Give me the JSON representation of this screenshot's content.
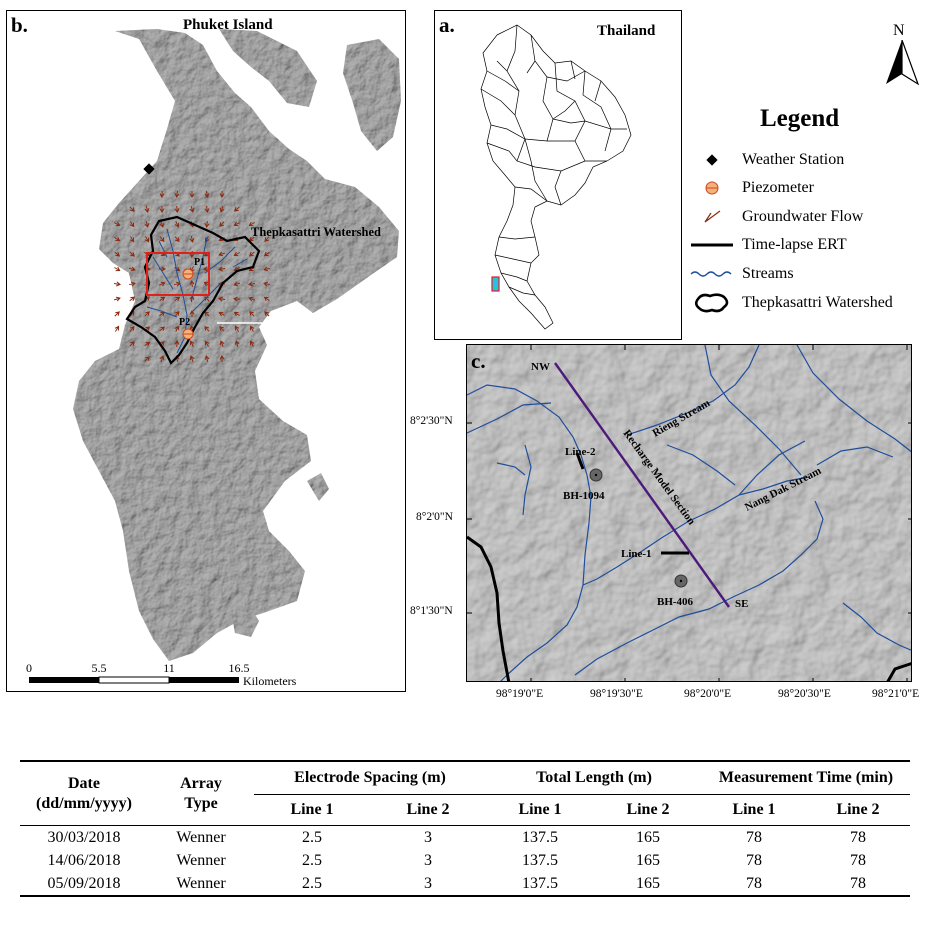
{
  "panel_b": {
    "letter": "b.",
    "title": "Phuket Island",
    "watershed_label": "Thepkasattri Watershed",
    "piezometer_labels": [
      "P1",
      "P2"
    ],
    "scale_ticks": [
      "0",
      "5.5",
      "11",
      "16.5"
    ],
    "scale_unit": "Kilometers"
  },
  "panel_a": {
    "letter": "a.",
    "title": "Thailand"
  },
  "north_arrow": {
    "label": "N"
  },
  "legend": {
    "title": "Legend",
    "items": [
      {
        "label": "Weather Station",
        "symbol": "diamond-icon"
      },
      {
        "label": "Piezometer",
        "symbol": "piezometer-icon"
      },
      {
        "label": "Groundwater Flow",
        "symbol": "flow-arrow-icon"
      },
      {
        "label": "Time-lapse ERT",
        "symbol": "thick-line-icon"
      },
      {
        "label": "Streams",
        "symbol": "wavy-line-icon"
      },
      {
        "label": "Thepkasattri Watershed",
        "symbol": "watershed-outline-icon"
      }
    ]
  },
  "panel_c": {
    "letter": "c.",
    "labels": {
      "nw": "NW",
      "se": "SE",
      "rieng": "Rieng Stream",
      "nangdak": "Nang Dak Stream",
      "section": "Recharge Model Section",
      "line1": "Line-1",
      "line2": "Line-2",
      "bh1094": "BH-1094",
      "bh406": "BH-406"
    },
    "lat_labels": [
      "8°2'30\"N",
      "8°2'0\"N",
      "8°1'30\"N"
    ],
    "lon_labels": [
      "98°19'0\"E",
      "98°19'30\"E",
      "98°20'0\"E",
      "98°20'30\"E",
      "98°21'0\"E"
    ]
  },
  "colors": {
    "stream": "#1f4e9c",
    "section_line": "#4b1a7a",
    "bbox": "#e0201b",
    "flow_arrow": "#8a2a10",
    "piezo_fill": "#f3b27a",
    "piezo_stroke": "#d0461b",
    "thailand_highlight": "#22c3e6",
    "terrain": "#b3b3b3"
  },
  "table": {
    "head1": {
      "date": "Date",
      "date_fmt": "(dd/mm/yyyy)",
      "array_l1": "Array",
      "array_l2": "Type",
      "spacing": "Electrode Spacing (m)",
      "length": "Total Length (m)",
      "time": "Measurement Time (min)"
    },
    "sub": [
      "Line 1",
      "Line 2",
      "Line 1",
      "Line 2",
      "Line 1",
      "Line 2"
    ],
    "rows": [
      {
        "date": "30/03/2018",
        "array": "Wenner",
        "s1": "2.5",
        "s2": "3",
        "l1": "137.5",
        "l2": "165",
        "t1": "78",
        "t2": "78"
      },
      {
        "date": "14/06/2018",
        "array": "Wenner",
        "s1": "2.5",
        "s2": "3",
        "l1": "137.5",
        "l2": "165",
        "t1": "78",
        "t2": "78"
      },
      {
        "date": "05/09/2018",
        "array": "Wenner",
        "s1": "2.5",
        "s2": "3",
        "l1": "137.5",
        "l2": "165",
        "t1": "78",
        "t2": "78"
      }
    ]
  }
}
